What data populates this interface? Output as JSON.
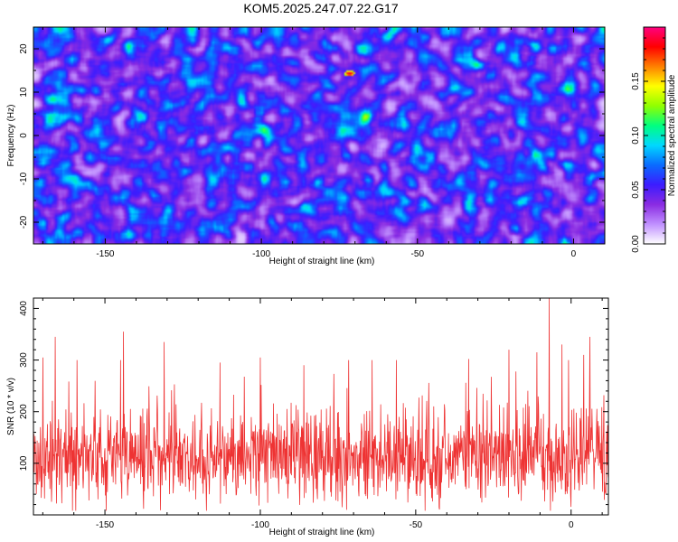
{
  "title": "KOM5.2025.247.07.22.G17",
  "chart_data": [
    {
      "type": "heatmap",
      "xlabel": "Height of straight line (km)",
      "ylabel": "Frequency (Hz)",
      "xlim": [
        -173,
        10
      ],
      "ylim": [
        -25,
        25
      ],
      "xticks": [
        -150,
        -100,
        -50,
        0
      ],
      "yticks": [
        -20,
        -10,
        0,
        10,
        20
      ],
      "xtick_labels": [
        "-150",
        "-100",
        "-50",
        "0"
      ],
      "ytick_labels": [
        "-20",
        "-10",
        "0",
        "10",
        "20"
      ],
      "colorbar": {
        "label": "Normalized spectral amplitude",
        "range": [
          0.0,
          0.2
        ],
        "ticks": [
          0.0,
          0.05,
          0.1,
          0.15
        ],
        "tick_labels": [
          "0.00",
          "0.05",
          "0.10",
          "0.15"
        ],
        "colors": [
          "#ffffff",
          "#c090ff",
          "#8a2be2",
          "#3c1cff",
          "#0a6bff",
          "#00d8ff",
          "#00ff80",
          "#90ff00",
          "#ffff00",
          "#ff8000",
          "#ff0000",
          "#ff0080"
        ]
      },
      "peak": {
        "x": -72,
        "y": 14.5,
        "value": 0.19
      }
    },
    {
      "type": "line",
      "xlabel": "Height of straight line (km)",
      "ylabel": "SNR (10 * v/v)",
      "xlim": [
        -173,
        12
      ],
      "ylim": [
        0,
        420
      ],
      "xticks": [
        -150,
        -100,
        -50,
        0
      ],
      "yticks": [
        100,
        200,
        300,
        400
      ],
      "xtick_labels": [
        "-150",
        "-100",
        "-50",
        "0"
      ],
      "ytick_labels": [
        "100",
        "200",
        "300",
        "400"
      ],
      "series": [
        {
          "name": "SNR",
          "color": "#ee3333"
        }
      ],
      "noise_mean": 110,
      "noise_sd": 42,
      "spikes": [
        {
          "x": -166,
          "y": 345
        },
        {
          "x": -170,
          "y": 305
        },
        {
          "x": -159,
          "y": 300
        },
        {
          "x": -145,
          "y": 300
        },
        {
          "x": -144,
          "y": 355
        },
        {
          "x": -131,
          "y": 335
        },
        {
          "x": -113,
          "y": 295
        },
        {
          "x": -100,
          "y": 305
        },
        {
          "x": -86,
          "y": 290
        },
        {
          "x": -64,
          "y": 300
        },
        {
          "x": -33,
          "y": 302
        },
        {
          "x": -20,
          "y": 320
        },
        {
          "x": -11,
          "y": 315
        },
        {
          "x": -7,
          "y": 420
        },
        {
          "x": -3,
          "y": 330
        },
        {
          "x": 4,
          "y": 310
        },
        {
          "x": 6,
          "y": 345
        }
      ]
    }
  ]
}
